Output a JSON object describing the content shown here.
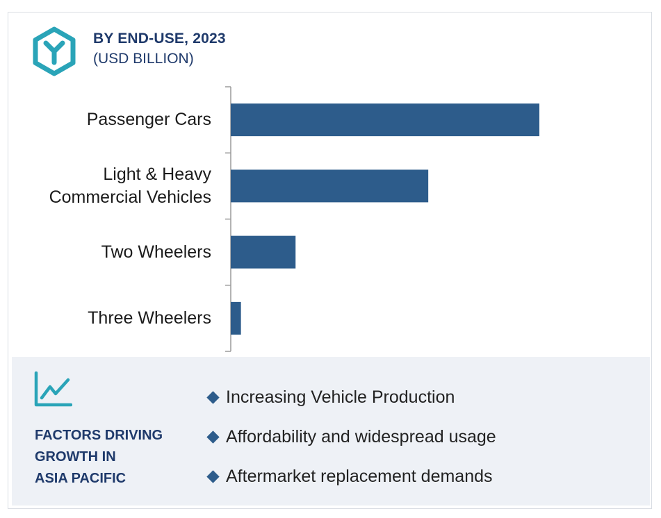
{
  "header": {
    "title": "BY END-USE, 2023",
    "subtitle": "(USD BILLION)"
  },
  "colors": {
    "bar": "#2d5c8b",
    "accent": "#2aa4b8",
    "heading": "#1f3a6b",
    "panel_bg": "#eef1f6"
  },
  "icons": {
    "logo": "hexagon-y-logo-icon",
    "trend": "line-chart-trend-icon",
    "bullet": "diamond-bullet-icon"
  },
  "chart_data": {
    "type": "bar",
    "orientation": "horizontal",
    "title": "BY END-USE, 2023",
    "subtitle": "(USD BILLION)",
    "categories": [
      "Passenger Cars",
      "Light & Heavy Commercial Vehicles",
      "Two Wheelers",
      "Three Wheelers"
    ],
    "category_lines": [
      [
        "Passenger Cars"
      ],
      [
        "Light & Heavy",
        "Commercial Vehicles"
      ],
      [
        "Two Wheelers"
      ],
      [
        "Three Wheelers"
      ]
    ],
    "values": [
      100,
      64,
      21,
      3.3
    ],
    "xlim": [
      0,
      100
    ],
    "grid": false,
    "legend": "none"
  },
  "factors": {
    "title_lines": [
      "FACTORS DRIVING",
      "GROWTH IN",
      "ASIA PACIFIC"
    ],
    "items": [
      "Increasing Vehicle Production",
      "Affordability and widespread usage",
      "Aftermarket replacement demands"
    ]
  }
}
